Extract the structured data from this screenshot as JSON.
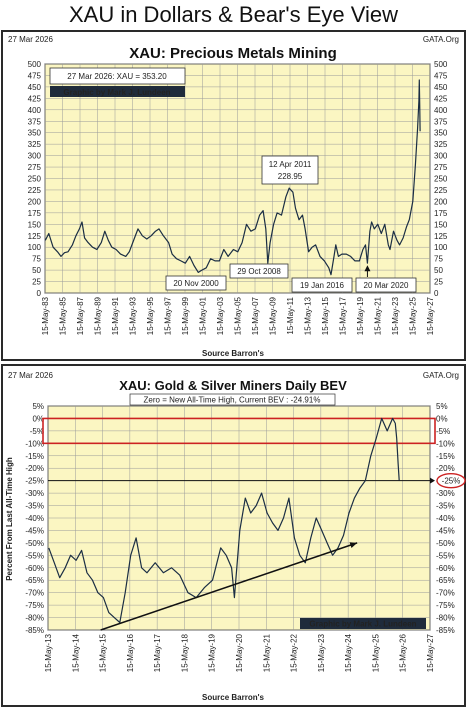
{
  "main_title": "XAU in Dollars & Bear's Eye View",
  "colors": {
    "frame": "#2a2a2a",
    "plot_bg": "#fbf6c2",
    "grid": "#9a9a9a",
    "line": "#1b2e44",
    "highlight": "#cc2222",
    "credit_bg": "#1f2b3b",
    "credit_text": "#ffffff"
  },
  "chart_data": [
    {
      "type": "line",
      "title": "XAU: Precious Metals Mining",
      "date_label": "27 Mar 2026",
      "brand": "GATA.Org",
      "info_box": "27 Mar 2026: XAU = 353.20",
      "credit": "Graphic by Mark J. Lundeen",
      "xlabel": "Source Barron's",
      "ylabel": "",
      "ylim": [
        0,
        500
      ],
      "y_ticks": [
        0,
        25,
        50,
        75,
        100,
        125,
        150,
        175,
        200,
        225,
        250,
        275,
        300,
        325,
        350,
        375,
        400,
        425,
        450,
        475,
        500
      ],
      "x_ticks": [
        "15-May-83",
        "15-May-85",
        "15-May-87",
        "15-May-89",
        "15-May-91",
        "15-May-93",
        "15-May-95",
        "15-May-97",
        "15-May-99",
        "15-May-01",
        "15-May-03",
        "15-May-05",
        "15-May-07",
        "15-May-09",
        "15-May-11",
        "15-May-13",
        "15-May-15",
        "15-May-17",
        "15-May-19",
        "15-May-21",
        "15-May-23",
        "15-May-25",
        "15-May-27"
      ],
      "xlim": [
        1983.37,
        2027.37
      ],
      "grid": true,
      "annotations": [
        {
          "text": "12 Apr 2011",
          "x": 2011.28
        },
        {
          "text": "228.95",
          "x": 2011.28
        },
        {
          "text": "20 Nov 2000",
          "x": 2000.89
        },
        {
          "text": "29 Oct 2008",
          "x": 2008.83
        },
        {
          "text": "19 Jan 2016",
          "x": 2016.05
        },
        {
          "text": "20 Mar 2020",
          "x": 2020.22
        }
      ],
      "series": [
        {
          "values": [
            [
              1983.4,
              115
            ],
            [
              1983.8,
              130
            ],
            [
              1984.3,
              100
            ],
            [
              1984.8,
              90
            ],
            [
              1985.2,
              80
            ],
            [
              1985.6,
              88
            ],
            [
              1986.0,
              90
            ],
            [
              1986.5,
              105
            ],
            [
              1986.9,
              125
            ],
            [
              1987.3,
              140
            ],
            [
              1987.6,
              155
            ],
            [
              1987.9,
              120
            ],
            [
              1988.3,
              110
            ],
            [
              1988.8,
              100
            ],
            [
              1989.3,
              95
            ],
            [
              1989.8,
              110
            ],
            [
              1990.2,
              135
            ],
            [
              1990.6,
              115
            ],
            [
              1991.0,
              100
            ],
            [
              1991.5,
              95
            ],
            [
              1992.0,
              85
            ],
            [
              1992.6,
              80
            ],
            [
              1993.0,
              90
            ],
            [
              1993.6,
              120
            ],
            [
              1994.0,
              140
            ],
            [
              1994.5,
              125
            ],
            [
              1995.0,
              118
            ],
            [
              1995.5,
              125
            ],
            [
              1996.0,
              135
            ],
            [
              1996.4,
              140
            ],
            [
              1996.9,
              125
            ],
            [
              1997.5,
              110
            ],
            [
              1997.9,
              85
            ],
            [
              1998.4,
              75
            ],
            [
              1998.9,
              70
            ],
            [
              1999.4,
              65
            ],
            [
              1999.9,
              80
            ],
            [
              2000.4,
              60
            ],
            [
              2000.89,
              45
            ],
            [
              2001.3,
              50
            ],
            [
              2001.8,
              55
            ],
            [
              2002.3,
              75
            ],
            [
              2002.8,
              70
            ],
            [
              2003.3,
              70
            ],
            [
              2003.8,
              95
            ],
            [
              2004.3,
              80
            ],
            [
              2004.9,
              95
            ],
            [
              2005.4,
              90
            ],
            [
              2005.9,
              110
            ],
            [
              2006.4,
              150
            ],
            [
              2006.9,
              135
            ],
            [
              2007.4,
              140
            ],
            [
              2007.9,
              170
            ],
            [
              2008.3,
              180
            ],
            [
              2008.6,
              140
            ],
            [
              2008.83,
              65
            ],
            [
              2009.1,
              110
            ],
            [
              2009.5,
              150
            ],
            [
              2009.9,
              175
            ],
            [
              2010.4,
              170
            ],
            [
              2010.9,
              210
            ],
            [
              2011.28,
              228.95
            ],
            [
              2011.7,
              220
            ],
            [
              2012.0,
              185
            ],
            [
              2012.4,
              160
            ],
            [
              2012.8,
              170
            ],
            [
              2013.1,
              140
            ],
            [
              2013.5,
              90
            ],
            [
              2013.9,
              100
            ],
            [
              2014.3,
              105
            ],
            [
              2014.8,
              80
            ],
            [
              2015.3,
              70
            ],
            [
              2015.8,
              55
            ],
            [
              2016.05,
              40
            ],
            [
              2016.4,
              80
            ],
            [
              2016.6,
              105
            ],
            [
              2016.9,
              80
            ],
            [
              2017.3,
              85
            ],
            [
              2017.8,
              85
            ],
            [
              2018.3,
              80
            ],
            [
              2018.8,
              70
            ],
            [
              2019.3,
              70
            ],
            [
              2019.7,
              95
            ],
            [
              2020.0,
              105
            ],
            [
              2020.22,
              65
            ],
            [
              2020.5,
              135
            ],
            [
              2020.7,
              155
            ],
            [
              2021.0,
              140
            ],
            [
              2021.4,
              150
            ],
            [
              2021.8,
              130
            ],
            [
              2022.2,
              150
            ],
            [
              2022.6,
              105
            ],
            [
              2022.8,
              95
            ],
            [
              2023.2,
              135
            ],
            [
              2023.6,
              115
            ],
            [
              2023.9,
              105
            ],
            [
              2024.3,
              120
            ],
            [
              2024.7,
              145
            ],
            [
              2025.0,
              160
            ],
            [
              2025.4,
              200
            ],
            [
              2025.7,
              280
            ],
            [
              2025.95,
              360
            ],
            [
              2026.1,
              420
            ],
            [
              2026.15,
              465
            ],
            [
              2026.2,
              400
            ],
            [
              2026.24,
              353.2
            ]
          ]
        }
      ]
    },
    {
      "type": "line",
      "title": "XAU: Gold & Silver Miners Daily BEV",
      "date_label": "27 Mar 2026",
      "brand": "GATA.Org",
      "info_box": "Zero = New All-Time High, Current BEV : -24.91%",
      "credit": "Graphic by Mark J. Lundeen",
      "xlabel": "Source Barron's",
      "ylabel": "Percent  From  Last  All-Time  High",
      "ylim": [
        -85,
        5
      ],
      "y_ticks": [
        "5%",
        "0%",
        "-5%",
        "-10%",
        "-15%",
        "-20%",
        "-25%",
        "-30%",
        "-35%",
        "-40%",
        "-45%",
        "-50%",
        "-55%",
        "-60%",
        "-65%",
        "-70%",
        "-75%",
        "-80%",
        "-85%"
      ],
      "y_tick_values": [
        5,
        0,
        -5,
        -10,
        -15,
        -20,
        -25,
        -30,
        -35,
        -40,
        -45,
        -50,
        -55,
        -60,
        -65,
        -70,
        -75,
        -80,
        -85
      ],
      "x_ticks": [
        "15-May-13",
        "15-May-14",
        "15-May-15",
        "15-May-16",
        "15-May-17",
        "15-May-18",
        "15-May-19",
        "15-May-20",
        "15-May-21",
        "15-May-22",
        "15-May-23",
        "15-May-24",
        "15-May-25",
        "15-May-26",
        "15-May-27"
      ],
      "xlim": [
        2013.37,
        2027.37
      ],
      "grid": true,
      "highlight_band": [
        0,
        -10
      ],
      "reference_line": -25,
      "reference_label": "-25%",
      "trend_arrow": [
        [
          2015.3,
          -85
        ],
        [
          2024.7,
          -50
        ]
      ],
      "series": [
        {
          "values": [
            [
              2013.4,
              -52
            ],
            [
              2013.6,
              -58
            ],
            [
              2013.8,
              -64
            ],
            [
              2014.0,
              -60
            ],
            [
              2014.2,
              -55
            ],
            [
              2014.4,
              -57
            ],
            [
              2014.6,
              -53
            ],
            [
              2014.8,
              -62
            ],
            [
              2015.0,
              -65
            ],
            [
              2015.2,
              -70
            ],
            [
              2015.4,
              -72
            ],
            [
              2015.6,
              -78
            ],
            [
              2015.8,
              -80
            ],
            [
              2016.0,
              -82
            ],
            [
              2016.2,
              -70
            ],
            [
              2016.4,
              -55
            ],
            [
              2016.6,
              -48
            ],
            [
              2016.8,
              -60
            ],
            [
              2017.0,
              -62
            ],
            [
              2017.3,
              -58
            ],
            [
              2017.6,
              -62
            ],
            [
              2017.9,
              -60
            ],
            [
              2018.2,
              -63
            ],
            [
              2018.5,
              -70
            ],
            [
              2018.8,
              -72
            ],
            [
              2019.1,
              -68
            ],
            [
              2019.4,
              -65
            ],
            [
              2019.7,
              -52
            ],
            [
              2019.9,
              -55
            ],
            [
              2020.1,
              -60
            ],
            [
              2020.2,
              -72
            ],
            [
              2020.4,
              -45
            ],
            [
              2020.6,
              -32
            ],
            [
              2020.8,
              -38
            ],
            [
              2021.0,
              -35
            ],
            [
              2021.2,
              -30
            ],
            [
              2021.4,
              -38
            ],
            [
              2021.6,
              -42
            ],
            [
              2021.8,
              -45
            ],
            [
              2022.0,
              -40
            ],
            [
              2022.2,
              -32
            ],
            [
              2022.4,
              -48
            ],
            [
              2022.6,
              -55
            ],
            [
              2022.8,
              -58
            ],
            [
              2023.0,
              -48
            ],
            [
              2023.2,
              -40
            ],
            [
              2023.4,
              -45
            ],
            [
              2023.6,
              -50
            ],
            [
              2023.8,
              -55
            ],
            [
              2024.0,
              -52
            ],
            [
              2024.2,
              -47
            ],
            [
              2024.4,
              -38
            ],
            [
              2024.6,
              -32
            ],
            [
              2024.8,
              -28
            ],
            [
              2025.0,
              -25
            ],
            [
              2025.2,
              -15
            ],
            [
              2025.4,
              -8
            ],
            [
              2025.6,
              0
            ],
            [
              2025.8,
              -5
            ],
            [
              2026.0,
              0
            ],
            [
              2026.1,
              -2
            ],
            [
              2026.15,
              -8
            ],
            [
              2026.2,
              -18
            ],
            [
              2026.24,
              -24.91
            ]
          ]
        }
      ]
    }
  ]
}
